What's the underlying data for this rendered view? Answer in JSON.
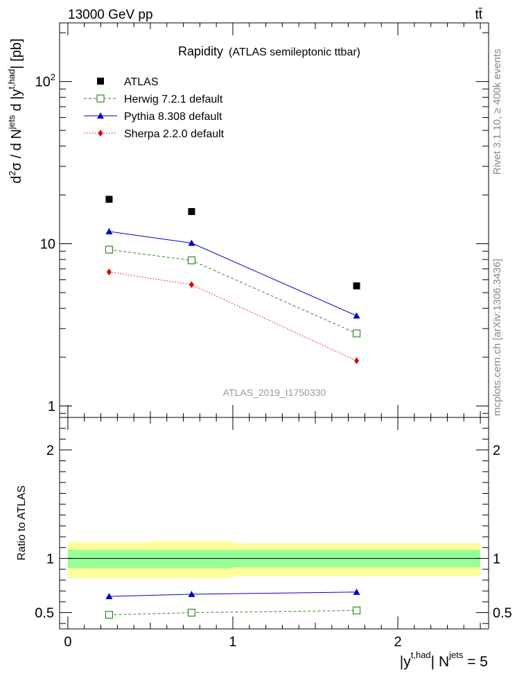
{
  "header": {
    "energy_label": "13000 GeV pp",
    "process_label": "tt̄"
  },
  "side_labels": {
    "rivet": "Rivet 3.1.10, ≥ 400k events",
    "mcplots": "mcplots.cern.ch [arXiv:1306.3436]"
  },
  "chart_data": [
    {
      "type": "line",
      "panel": "main",
      "title": "Rapidity",
      "subtitle": "(ATLAS semileptonic ttbar)",
      "ylabel": "d²σ / d N^jets d |y^t,had| [pb]",
      "yscale": "log",
      "ylim": [
        0.85,
        230
      ],
      "xlim": [
        -0.05,
        2.55
      ],
      "yticks": [
        1,
        10,
        100
      ],
      "ytick_labels": [
        "1",
        "10",
        "10²"
      ],
      "watermark": "ATLAS_2019_I1750330",
      "legend_position": "top-left",
      "x": [
        0.25,
        0.75,
        1.75
      ],
      "series": [
        {
          "name": "ATLAS",
          "values": [
            18.8,
            15.8,
            5.5
          ],
          "color": "#000000",
          "marker": "square",
          "line": "none"
        },
        {
          "name": "Herwig 7.2.1 default",
          "values": [
            9.2,
            7.9,
            2.8
          ],
          "color": "#2e8b1e",
          "marker": "open-square",
          "line": "dashed"
        },
        {
          "name": "Pythia 8.308 default",
          "values": [
            11.9,
            10.1,
            3.6
          ],
          "color": "#0000cc",
          "marker": "triangle",
          "line": "solid"
        },
        {
          "name": "Sherpa 2.2.0 default",
          "values": [
            6.7,
            5.6,
            1.9
          ],
          "color": "#dd0000",
          "marker": "diamond",
          "line": "dotted"
        }
      ]
    },
    {
      "type": "line",
      "panel": "ratio",
      "ylabel": "Ratio to ATLAS",
      "xlabel": "|y^t,had| N^jets = 5",
      "ylim": [
        0.35,
        2.3
      ],
      "xlim": [
        -0.05,
        2.55
      ],
      "yticks": [
        0.5,
        1,
        2
      ],
      "ytick_labels": [
        "0.5",
        "1",
        "2"
      ],
      "xticks": [
        0,
        1,
        2
      ],
      "xtick_labels": [
        "0",
        "1",
        "2"
      ],
      "bands": [
        {
          "x": [
            0,
            0.5
          ],
          "inner": [
            0.91,
            1.08
          ],
          "outer": [
            0.82,
            1.15
          ],
          "x_edges_note": ""
        },
        {
          "x": [
            0.5,
            1.0
          ],
          "inner": [
            0.91,
            1.08
          ],
          "outer": [
            0.82,
            1.16
          ]
        },
        {
          "x": [
            1.0,
            2.5
          ],
          "inner": [
            0.92,
            1.08
          ],
          "outer": [
            0.84,
            1.14
          ]
        }
      ],
      "inner_band_color": "#99ff99",
      "outer_band_color": "#ffff99",
      "x": [
        0.25,
        0.75,
        1.75
      ],
      "series": [
        {
          "name": "Herwig 7.2.1 default",
          "values": [
            0.48,
            0.5,
            0.52
          ],
          "color": "#2e8b1e",
          "marker": "open-square",
          "line": "dashed"
        },
        {
          "name": "Pythia 8.308 default",
          "values": [
            0.65,
            0.67,
            0.69
          ],
          "color": "#0000cc",
          "marker": "triangle",
          "line": "solid"
        }
      ]
    }
  ]
}
